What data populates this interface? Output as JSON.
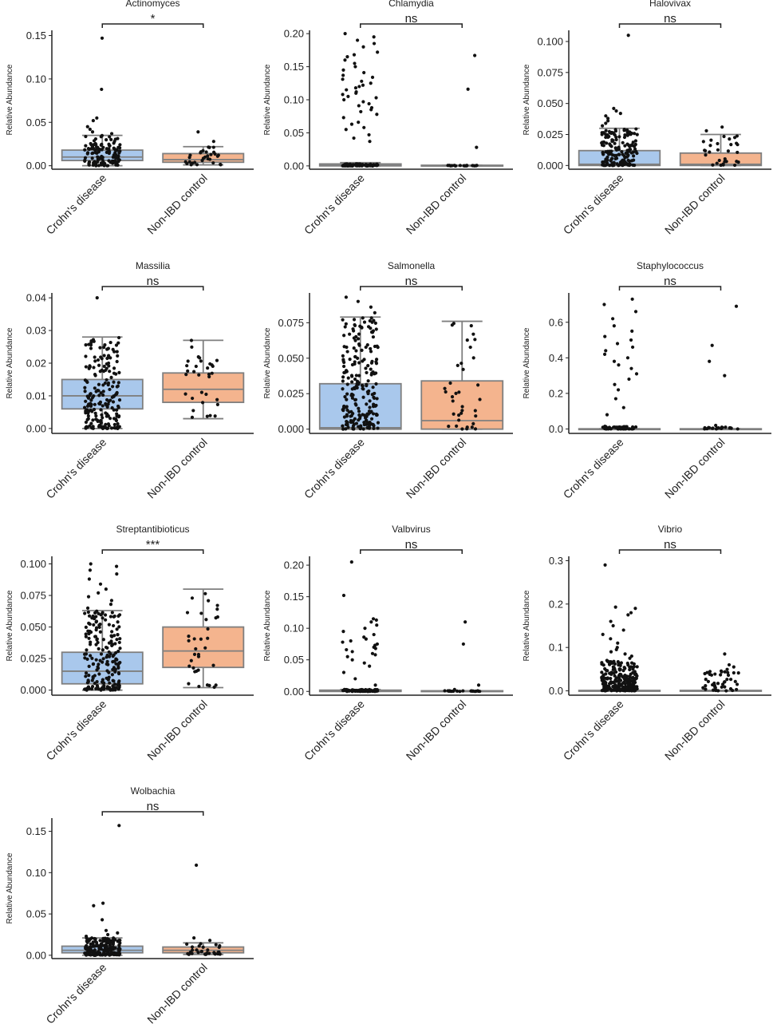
{
  "figure": {
    "ylabel": "Relative Abundance",
    "categories": [
      "Crohn's disease",
      "Non-IBD control"
    ],
    "colors": {
      "crohns": "#a9c8ec",
      "control": "#f4b48e",
      "box_line": "#7f7f7f",
      "dot": "#111111",
      "axis": "#222222"
    }
  },
  "chart_data": [
    {
      "type": "box",
      "title": "Actinomyces",
      "ylabel": "Relative Abundance",
      "categories": [
        "Crohn's disease",
        "Non-IBD control"
      ],
      "significance": "*",
      "yticks": [
        "0.00",
        "0.05",
        "0.10",
        "0.15"
      ],
      "ylim": [
        -0.004,
        0.156
      ],
      "boxes": [
        {
          "q1": 0.006,
          "median": 0.01,
          "q3": 0.018,
          "whisker_low": 0.0,
          "whisker_high": 0.035,
          "n": 130,
          "jitter_max": 0.035,
          "outliers": [
            0.037,
            0.039,
            0.042,
            0.045,
            0.052,
            0.055,
            0.088,
            0.147
          ]
        },
        {
          "q1": 0.004,
          "median": 0.007,
          "q3": 0.014,
          "whisker_low": 0.001,
          "whisker_high": 0.022,
          "n": 30,
          "jitter_max": 0.022,
          "outliers": [
            0.028,
            0.039
          ]
        }
      ]
    },
    {
      "type": "box",
      "title": "Chlamydia",
      "ylabel": "Relative Abundance",
      "categories": [
        "Crohn's disease",
        "Non-IBD control"
      ],
      "significance": "ns",
      "yticks": [
        "0.00",
        "0.05",
        "0.10",
        "0.15",
        "0.20"
      ],
      "ylim": [
        -0.005,
        0.205
      ],
      "boxes": [
        {
          "q1": 0.0,
          "median": 0.001,
          "q3": 0.003,
          "whisker_low": 0.0,
          "whisker_high": 0.005,
          "n": 70,
          "jitter_max": 0.003,
          "outliers": [
            0.037,
            0.042,
            0.047,
            0.055,
            0.058,
            0.063,
            0.066,
            0.073,
            0.078,
            0.082,
            0.085,
            0.088,
            0.091,
            0.094,
            0.097,
            0.1,
            0.103,
            0.105,
            0.108,
            0.11,
            0.112,
            0.115,
            0.118,
            0.12,
            0.122,
            0.125,
            0.128,
            0.131,
            0.134,
            0.137,
            0.141,
            0.145,
            0.15,
            0.155,
            0.16,
            0.165,
            0.168,
            0.172,
            0.18,
            0.185,
            0.19,
            0.195,
            0.2
          ]
        },
        {
          "q1": 0.0,
          "median": 0.0,
          "q3": 0.001,
          "whisker_low": 0.0,
          "whisker_high": 0.001,
          "n": 18,
          "jitter_max": 0.001,
          "outliers": [
            0.028,
            0.116,
            0.167
          ]
        }
      ]
    },
    {
      "type": "box",
      "title": "Halovivax",
      "ylabel": "Relative Abundance",
      "categories": [
        "Crohn's disease",
        "Non-IBD control"
      ],
      "significance": "ns",
      "yticks": [
        "0.000",
        "0.025",
        "0.050",
        "0.075",
        "0.100"
      ],
      "ylim": [
        -0.003,
        0.109
      ],
      "boxes": [
        {
          "q1": 0.0,
          "median": 0.001,
          "q3": 0.012,
          "whisker_low": 0.0,
          "whisker_high": 0.03,
          "n": 160,
          "jitter_max": 0.03,
          "outliers": [
            0.032,
            0.034,
            0.036,
            0.038,
            0.04,
            0.042,
            0.044,
            0.046,
            0.105
          ]
        },
        {
          "q1": 0.0,
          "median": 0.001,
          "q3": 0.01,
          "whisker_low": 0.0,
          "whisker_high": 0.025,
          "n": 30,
          "jitter_max": 0.025,
          "outliers": [
            0.028,
            0.031
          ]
        }
      ]
    },
    {
      "type": "box",
      "title": "Massilia",
      "ylabel": "Relative Abundance",
      "categories": [
        "Crohn's disease",
        "Non-IBD control"
      ],
      "significance": "ns",
      "yticks": [
        "0.00",
        "0.01",
        "0.02",
        "0.03",
        "0.04"
      ],
      "ylim": [
        -0.0015,
        0.0415
      ],
      "boxes": [
        {
          "q1": 0.006,
          "median": 0.01,
          "q3": 0.015,
          "whisker_low": 0.0,
          "whisker_high": 0.028,
          "n": 200,
          "jitter_max": 0.028,
          "outliers": [
            0.04
          ]
        },
        {
          "q1": 0.008,
          "median": 0.012,
          "q3": 0.017,
          "whisker_low": 0.003,
          "whisker_high": 0.027,
          "n": 32,
          "jitter_max": 0.027,
          "outliers": []
        }
      ]
    },
    {
      "type": "box",
      "title": "Salmonella",
      "ylabel": "Relative Abundance",
      "categories": [
        "Crohn's disease",
        "Non-IBD control"
      ],
      "significance": "ns",
      "yticks": [
        "0.000",
        "0.025",
        "0.050",
        "0.075"
      ],
      "ylim": [
        -0.003,
        0.096
      ],
      "boxes": [
        {
          "q1": 0.0,
          "median": 0.001,
          "q3": 0.032,
          "whisker_low": 0.0,
          "whisker_high": 0.079,
          "n": 220,
          "jitter_max": 0.079,
          "outliers": [
            0.082,
            0.086,
            0.09,
            0.093
          ]
        },
        {
          "q1": 0.0,
          "median": 0.006,
          "q3": 0.034,
          "whisker_low": 0.0,
          "whisker_high": 0.076,
          "n": 36,
          "jitter_max": 0.076,
          "outliers": []
        }
      ]
    },
    {
      "type": "box",
      "title": "Staphylococcus",
      "ylabel": "Relative Abundance",
      "categories": [
        "Crohn's disease",
        "Non-IBD control"
      ],
      "significance": "ns",
      "yticks": [
        "0.0",
        "0.2",
        "0.4",
        "0.6"
      ],
      "ylim": [
        -0.025,
        0.765
      ],
      "boxes": [
        {
          "q1": 0.0,
          "median": 0.0,
          "q3": 0.001,
          "whisker_low": 0.0,
          "whisker_high": 0.001,
          "n": 50,
          "jitter_max": 0.015,
          "outliers": [
            0.08,
            0.12,
            0.17,
            0.22,
            0.25,
            0.28,
            0.31,
            0.34,
            0.36,
            0.38,
            0.4,
            0.42,
            0.44,
            0.46,
            0.48,
            0.5,
            0.52,
            0.55,
            0.58,
            0.62,
            0.66,
            0.7,
            0.73
          ]
        },
        {
          "q1": 0.0,
          "median": 0.0,
          "q3": 0.001,
          "whisker_low": 0.0,
          "whisker_high": 0.001,
          "n": 18,
          "jitter_max": 0.01,
          "outliers": [
            0.02,
            0.3,
            0.38,
            0.47,
            0.69
          ]
        }
      ]
    },
    {
      "type": "box",
      "title": "Streptantibioticus",
      "ylabel": "Relative Abundance",
      "categories": [
        "Crohn's disease",
        "Non-IBD control"
      ],
      "significance": "***",
      "yticks": [
        "0.000",
        "0.025",
        "0.050",
        "0.075",
        "0.100"
      ],
      "ylim": [
        -0.004,
        0.106
      ],
      "boxes": [
        {
          "q1": 0.005,
          "median": 0.015,
          "q3": 0.03,
          "whisker_low": 0.0,
          "whisker_high": 0.063,
          "n": 190,
          "jitter_max": 0.063,
          "outliers": [
            0.065,
            0.068,
            0.071,
            0.074,
            0.077,
            0.08,
            0.084,
            0.088,
            0.092,
            0.095,
            0.098,
            0.1
          ]
        },
        {
          "q1": 0.018,
          "median": 0.031,
          "q3": 0.05,
          "whisker_low": 0.002,
          "whisker_high": 0.08,
          "n": 34,
          "jitter_max": 0.08,
          "outliers": []
        }
      ]
    },
    {
      "type": "box",
      "title": "Valbvirus",
      "ylabel": "Relative Abundance",
      "categories": [
        "Crohn's disease",
        "Non-IBD control"
      ],
      "significance": "ns",
      "yticks": [
        "0.00",
        "0.05",
        "0.10",
        "0.15",
        "0.20"
      ],
      "ylim": [
        -0.006,
        0.214
      ],
      "boxes": [
        {
          "q1": 0.0,
          "median": 0.0,
          "q3": 0.002,
          "whisker_low": 0.0,
          "whisker_high": 0.003,
          "n": 70,
          "jitter_max": 0.003,
          "outliers": [
            0.01,
            0.02,
            0.03,
            0.04,
            0.045,
            0.05,
            0.055,
            0.058,
            0.06,
            0.063,
            0.066,
            0.068,
            0.07,
            0.073,
            0.075,
            0.078,
            0.08,
            0.083,
            0.086,
            0.09,
            0.095,
            0.1,
            0.105,
            0.11,
            0.113,
            0.115,
            0.152,
            0.205
          ]
        },
        {
          "q1": 0.0,
          "median": 0.0,
          "q3": 0.001,
          "whisker_low": 0.0,
          "whisker_high": 0.001,
          "n": 20,
          "jitter_max": 0.001,
          "outliers": [
            0.003,
            0.01,
            0.075,
            0.11
          ]
        }
      ]
    },
    {
      "type": "box",
      "title": "Vibrio",
      "ylabel": "Relative Abundance",
      "categories": [
        "Crohn's disease",
        "Non-IBD control"
      ],
      "significance": "ns",
      "yticks": [
        "0.0",
        "0.1",
        "0.2",
        "0.3"
      ],
      "ylim": [
        -0.01,
        0.31
      ],
      "boxes": [
        {
          "q1": 0.0,
          "median": 0.0,
          "q3": 0.001,
          "whisker_low": 0.0,
          "whisker_high": 0.001,
          "n": 230,
          "jitter_max": 0.07,
          "outliers": [
            0.075,
            0.08,
            0.085,
            0.09,
            0.095,
            0.1,
            0.11,
            0.12,
            0.13,
            0.14,
            0.15,
            0.16,
            0.175,
            0.18,
            0.19,
            0.193,
            0.29
          ]
        },
        {
          "q1": 0.0,
          "median": 0.0,
          "q3": 0.001,
          "whisker_low": 0.0,
          "whisker_high": 0.001,
          "n": 45,
          "jitter_max": 0.05,
          "outliers": [
            0.055,
            0.06,
            0.085
          ]
        }
      ]
    },
    {
      "type": "box",
      "title": "Wolbachia",
      "ylabel": "Relative Abundance",
      "categories": [
        "Crohn's disease",
        "Non-IBD control"
      ],
      "significance": "ns",
      "yticks": [
        "0.00",
        "0.05",
        "0.10",
        "0.15"
      ],
      "ylim": [
        -0.004,
        0.166
      ],
      "boxes": [
        {
          "q1": 0.003,
          "median": 0.006,
          "q3": 0.011,
          "whisker_low": 0.0,
          "whisker_high": 0.021,
          "n": 160,
          "jitter_max": 0.021,
          "outliers": [
            0.023,
            0.025,
            0.027,
            0.03,
            0.043,
            0.06,
            0.063,
            0.157
          ]
        },
        {
          "q1": 0.003,
          "median": 0.006,
          "q3": 0.01,
          "whisker_low": 0.001,
          "whisker_high": 0.015,
          "n": 30,
          "jitter_max": 0.015,
          "outliers": [
            0.018,
            0.021,
            0.109
          ]
        }
      ]
    }
  ]
}
